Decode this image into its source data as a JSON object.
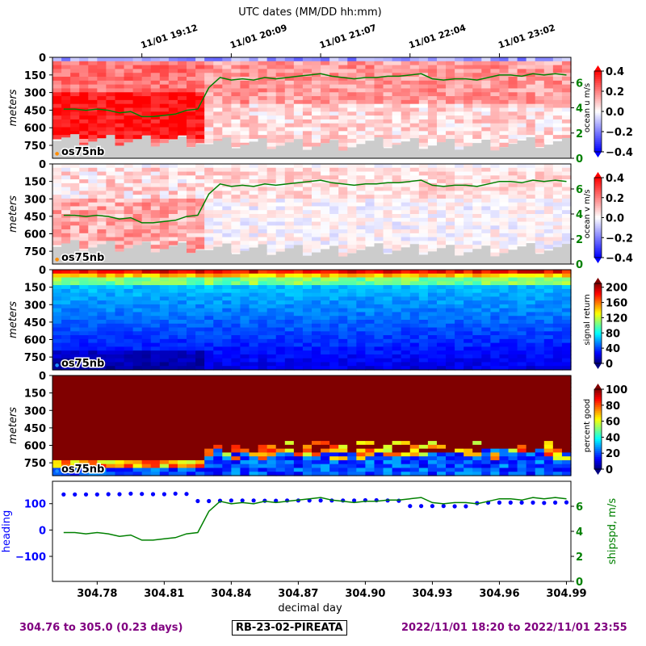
{
  "chart_data": {
    "type": "heatmap",
    "top_axis_title": "UTC dates (MM/DD hh:mm)",
    "top_ticks": [
      {
        "day": 304.8,
        "label": "11/01 19:12"
      },
      {
        "day": 304.84,
        "label": "11/01 20:09"
      },
      {
        "day": 304.88,
        "label": "11/01 21:07"
      },
      {
        "day": 304.92,
        "label": "11/01 22:04"
      },
      {
        "day": 304.96,
        "label": "11/01 23:02"
      }
    ],
    "x_range": [
      304.76,
      304.992
    ],
    "x_ticks": [
      304.78,
      304.81,
      304.84,
      304.87,
      304.9,
      304.93,
      304.96,
      304.99
    ],
    "x_tick_labels": [
      "304.78",
      "304.81",
      "304.84",
      "304.87",
      "304.90",
      "304.93",
      "304.96",
      "304.99"
    ],
    "xlabel": "decimal day",
    "depth_ylabel": "meters",
    "depth_ticks": [
      "0",
      "150",
      "300",
      "450",
      "600",
      "750"
    ],
    "depth_range": [
      0,
      860
    ],
    "instrument_label": "os75nb",
    "panels": [
      {
        "name": "ocean-u",
        "cbar_label": "ocean u m/s",
        "cmap": "bwr",
        "cbar_range": [
          -0.4,
          0.4
        ],
        "cbar_ticks": [
          "0.4",
          "0.2",
          "0.0",
          "−0.2",
          "−0.4"
        ],
        "right_ticks": [
          "0",
          "2",
          "4",
          "6"
        ],
        "has_speed": true
      },
      {
        "name": "ocean-v",
        "cbar_label": "ocean v m/s",
        "cmap": "bwr",
        "cbar_range": [
          -0.4,
          0.4
        ],
        "cbar_ticks": [
          "0.4",
          "0.2",
          "0.0",
          "−0.2",
          "−0.4"
        ],
        "right_ticks": [
          "0",
          "2",
          "4",
          "6"
        ],
        "has_speed": true
      },
      {
        "name": "signal-return",
        "cbar_label": "signal return",
        "cmap": "jet",
        "cbar_range": [
          0,
          210
        ],
        "cbar_ticks": [
          "200",
          "160",
          "120",
          "80",
          "40",
          "0"
        ],
        "has_speed": false
      },
      {
        "name": "percent-good",
        "cbar_label": "percent good",
        "cmap": "jet",
        "cbar_range": [
          0,
          100
        ],
        "cbar_ticks": [
          "100",
          "80",
          "60",
          "40",
          "20",
          "0"
        ],
        "has_speed": false
      }
    ],
    "ship_speed": {
      "name": "shipspd, m/s",
      "x": [
        304.765,
        304.77,
        304.775,
        304.78,
        304.785,
        304.79,
        304.795,
        304.8,
        304.805,
        304.81,
        304.815,
        304.82,
        304.825,
        304.83,
        304.835,
        304.84,
        304.845,
        304.85,
        304.855,
        304.86,
        304.865,
        304.87,
        304.875,
        304.88,
        304.885,
        304.89,
        304.895,
        304.9,
        304.905,
        304.91,
        304.915,
        304.92,
        304.925,
        304.93,
        304.935,
        304.94,
        304.945,
        304.95,
        304.955,
        304.96,
        304.965,
        304.97,
        304.975,
        304.98,
        304.985,
        304.99
      ],
      "y": [
        3.9,
        3.9,
        3.8,
        3.9,
        3.8,
        3.6,
        3.7,
        3.3,
        3.3,
        3.4,
        3.5,
        3.8,
        3.9,
        5.6,
        6.4,
        6.2,
        6.3,
        6.2,
        6.4,
        6.3,
        6.4,
        6.5,
        6.6,
        6.7,
        6.5,
        6.4,
        6.3,
        6.4,
        6.4,
        6.5,
        6.5,
        6.6,
        6.7,
        6.3,
        6.2,
        6.3,
        6.3,
        6.2,
        6.4,
        6.6,
        6.6,
        6.5,
        6.7,
        6.6,
        6.7,
        6.6
      ]
    },
    "heading": {
      "name": "heading",
      "x": [
        304.765,
        304.77,
        304.775,
        304.78,
        304.785,
        304.79,
        304.795,
        304.8,
        304.805,
        304.81,
        304.815,
        304.82,
        304.825,
        304.83,
        304.835,
        304.84,
        304.845,
        304.85,
        304.855,
        304.86,
        304.865,
        304.87,
        304.875,
        304.88,
        304.885,
        304.89,
        304.895,
        304.9,
        304.905,
        304.91,
        304.915,
        304.92,
        304.925,
        304.93,
        304.935,
        304.94,
        304.945,
        304.95,
        304.955,
        304.96,
        304.965,
        304.97,
        304.975,
        304.98,
        304.985,
        304.99
      ],
      "y": [
        135,
        135,
        135,
        135,
        136,
        136,
        138,
        137,
        136,
        136,
        138,
        137,
        110,
        110,
        111,
        112,
        112,
        112,
        111,
        111,
        112,
        112,
        112,
        112,
        112,
        112,
        112,
        113,
        113,
        112,
        111,
        91,
        91,
        91,
        91,
        90,
        90,
        102,
        104,
        104,
        104,
        104,
        104,
        103,
        104,
        105
      ]
    },
    "bottom_panel": {
      "ylabel_left": "heading",
      "ylabel_right": "shipspd, m/s",
      "left_ticks": [
        "100",
        "0",
        "−100"
      ],
      "left_range": [
        -195,
        185
      ],
      "right_ticks": [
        "0",
        "2",
        "4",
        "6"
      ],
      "right_range": [
        0,
        8
      ]
    },
    "speed_axis_range": [
      0,
      8
    ]
  },
  "footer": {
    "left": "304.76 to 305.0 (0.23 days)",
    "center": "RB-23-02-PIREATA",
    "right": "2022/11/01 18:20 to 2022/11/01 23:55"
  },
  "colors": {
    "speed_line": "#008000",
    "heading_dots": "#0000ff",
    "title_purple": "#800080",
    "bottom_fill": "#cccccc"
  }
}
